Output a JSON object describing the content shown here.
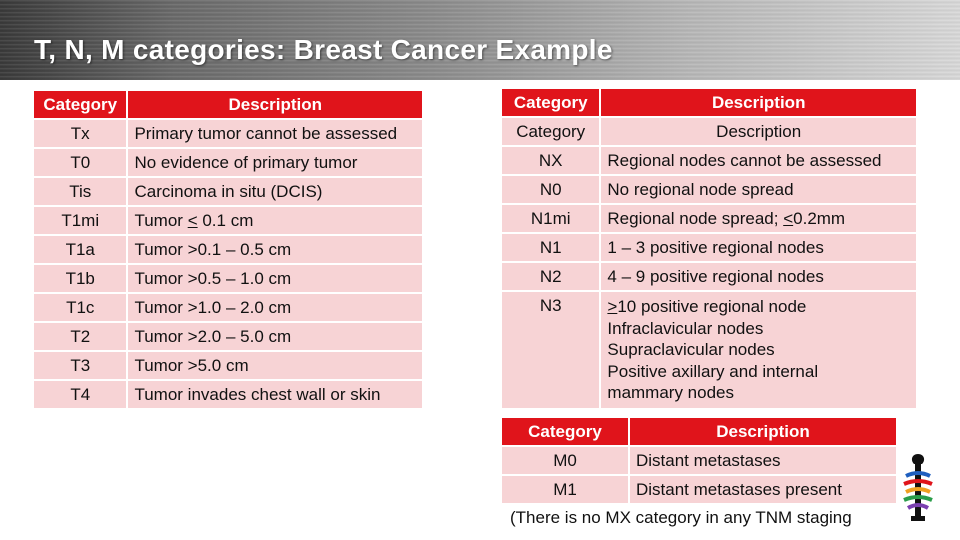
{
  "title": "T, N, M categories:  Breast Cancer Example",
  "colors": {
    "header_red": "#e0141b",
    "row_pink": "#f7d3d5"
  },
  "t_table": {
    "headers": [
      "Category",
      "Description"
    ],
    "rows": [
      {
        "category": "Tx",
        "description": "Primary tumor cannot be assessed"
      },
      {
        "category": "T0",
        "description": "No evidence of primary tumor"
      },
      {
        "category": "Tis",
        "description": "Carcinoma in situ (DCIS)"
      },
      {
        "category": "T1mi",
        "description_pre": "Tumor ",
        "description_u": "<",
        "description_post": " 0.1 cm"
      },
      {
        "category": "T1a",
        "description": "Tumor >0.1 – 0.5 cm"
      },
      {
        "category": "T1b",
        "description": "Tumor >0.5 – 1.0 cm"
      },
      {
        "category": "T1c",
        "description": "Tumor >1.0 – 2.0 cm"
      },
      {
        "category": "T2",
        "description": "Tumor >2.0 – 5.0 cm"
      },
      {
        "category": "T3",
        "description": "Tumor >5.0 cm"
      },
      {
        "category": "T4",
        "description": "Tumor invades chest wall or skin"
      }
    ]
  },
  "n_table": {
    "headers": [
      "Category",
      "Description"
    ],
    "rows": [
      {
        "category": "Category",
        "description": "Description"
      },
      {
        "category": "NX",
        "description": "Regional nodes cannot be assessed"
      },
      {
        "category": "N0",
        "description": "No regional node spread"
      },
      {
        "category": "N1mi",
        "description_pre": "Regional node spread; ",
        "description_u": "<",
        "description_post": "0.2mm"
      },
      {
        "category": "N1",
        "description": "1 – 3 positive regional nodes"
      },
      {
        "category": "N2",
        "description": "4 – 9 positive regional nodes"
      },
      {
        "category": "N3",
        "description_u": ">",
        "description_post": "10 positive regional node",
        "extra_lines": [
          "Infraclavicular nodes",
          "Supraclavicular nodes",
          "Positive axillary and internal",
          "mammary nodes"
        ]
      }
    ]
  },
  "m_table": {
    "headers": [
      "Category",
      "Description"
    ],
    "rows": [
      {
        "category": "M0",
        "description": "Distant metastases"
      },
      {
        "category": "M1",
        "description": "Distant metastases present"
      }
    ],
    "note": "(There is no MX category in any TNM staging"
  },
  "logo_icon": "ribbon-logo-icon"
}
